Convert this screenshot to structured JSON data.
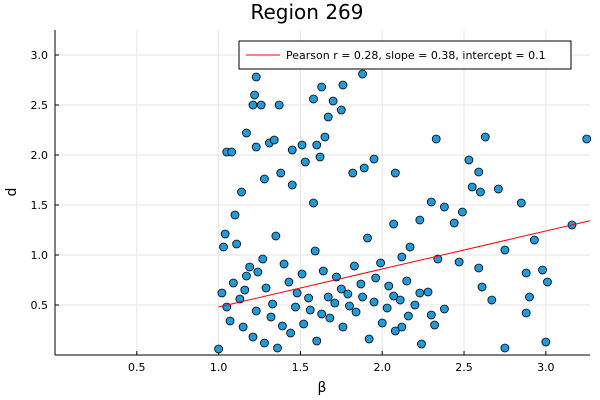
{
  "chart_data": {
    "type": "scatter",
    "title": "Region 269",
    "xlabel": "β",
    "ylabel": "d",
    "xlim": [
      0.0,
      3.27
    ],
    "ylim": [
      0.0,
      3.25
    ],
    "xticks": [
      0.5,
      1.0,
      1.5,
      2.0,
      2.5,
      3.0
    ],
    "xtick_labels": [
      "0.5",
      "1.0",
      "1.5",
      "2.0",
      "2.5",
      "3.0"
    ],
    "yticks": [
      0.5,
      1.0,
      1.5,
      2.0,
      2.5,
      3.0
    ],
    "ytick_labels": [
      "0.5",
      "1.0",
      "1.5",
      "2.0",
      "2.5",
      "3.0"
    ],
    "grid": true,
    "legend_position": "top-right",
    "marker_color": "#1f9bdc",
    "fit_color": "#ff0000",
    "fit": {
      "label": "Pearson r = 0.28, slope = 0.38, intercept = 0.1",
      "slope": 0.38,
      "intercept": 0.1,
      "x_range": [
        1.0,
        3.27
      ]
    },
    "series": [
      {
        "marker": "circle",
        "points": [
          [
            1.23,
            2.78
          ],
          [
            1.76,
            2.7
          ],
          [
            1.88,
            2.81
          ],
          [
            1.22,
            2.6
          ],
          [
            1.63,
            2.68
          ],
          [
            1.21,
            2.5
          ],
          [
            1.26,
            2.5
          ],
          [
            1.37,
            2.5
          ],
          [
            1.7,
            2.54
          ],
          [
            1.58,
            2.56
          ],
          [
            1.75,
            2.45
          ],
          [
            1.67,
            2.38
          ],
          [
            1.17,
            2.22
          ],
          [
            1.31,
            2.12
          ],
          [
            1.34,
            2.15
          ],
          [
            1.51,
            2.1
          ],
          [
            1.6,
            2.1
          ],
          [
            1.23,
            2.08
          ],
          [
            1.05,
            2.03
          ],
          [
            1.08,
            2.03
          ],
          [
            1.65,
            2.18
          ],
          [
            2.33,
            2.16
          ],
          [
            2.63,
            2.18
          ],
          [
            3.25,
            2.16
          ],
          [
            1.45,
            2.05
          ],
          [
            1.53,
            1.93
          ],
          [
            1.62,
            1.98
          ],
          [
            1.95,
            1.96
          ],
          [
            2.53,
            1.95
          ],
          [
            1.82,
            1.82
          ],
          [
            1.89,
            1.87
          ],
          [
            2.08,
            1.82
          ],
          [
            2.59,
            1.83
          ],
          [
            2.55,
            1.68
          ],
          [
            2.6,
            1.63
          ],
          [
            2.71,
            1.66
          ],
          [
            2.3,
            1.53
          ],
          [
            2.38,
            1.48
          ],
          [
            2.49,
            1.43
          ],
          [
            2.85,
            1.52
          ],
          [
            2.44,
            1.32
          ],
          [
            2.23,
            1.35
          ],
          [
            2.07,
            1.31
          ],
          [
            3.16,
            1.3
          ],
          [
            2.93,
            1.15
          ],
          [
            2.75,
            1.05
          ],
          [
            2.17,
            1.08
          ],
          [
            2.12,
            0.98
          ],
          [
            2.34,
            0.96
          ],
          [
            2.47,
            0.93
          ],
          [
            2.59,
            0.87
          ],
          [
            2.88,
            0.82
          ],
          [
            2.98,
            0.85
          ],
          [
            3.01,
            0.73
          ],
          [
            2.61,
            0.68
          ],
          [
            2.67,
            0.55
          ],
          [
            2.9,
            0.58
          ],
          [
            2.88,
            0.42
          ],
          [
            2.3,
            0.4
          ],
          [
            2.38,
            0.46
          ],
          [
            2.32,
            0.3
          ],
          [
            2.75,
            0.07
          ],
          [
            3.0,
            0.13
          ],
          [
            1.45,
            1.7
          ],
          [
            1.58,
            1.52
          ],
          [
            1.38,
            1.82
          ],
          [
            1.28,
            1.76
          ],
          [
            1.14,
            1.63
          ],
          [
            1.1,
            1.4
          ],
          [
            1.04,
            1.21
          ],
          [
            1.03,
            1.08
          ],
          [
            1.02,
            0.62
          ],
          [
            1.05,
            0.48
          ],
          [
            1.0,
            0.06
          ],
          [
            1.15,
            0.28
          ],
          [
            1.21,
            0.18
          ],
          [
            1.28,
            0.12
          ],
          [
            1.36,
            0.07
          ],
          [
            1.44,
            0.22
          ],
          [
            1.52,
            0.31
          ],
          [
            1.6,
            0.14
          ],
          [
            1.68,
            0.37
          ],
          [
            1.76,
            0.28
          ],
          [
            1.84,
            0.43
          ],
          [
            1.92,
            0.16
          ],
          [
            2.0,
            0.32
          ],
          [
            2.08,
            0.24
          ],
          [
            2.16,
            0.39
          ],
          [
            2.24,
            0.11
          ],
          [
            1.11,
            1.11
          ],
          [
            1.19,
            0.88
          ],
          [
            1.27,
            0.96
          ],
          [
            1.35,
            1.19
          ],
          [
            1.43,
            0.73
          ],
          [
            1.51,
            0.81
          ],
          [
            1.59,
            1.04
          ],
          [
            1.67,
            0.58
          ],
          [
            1.75,
            0.66
          ],
          [
            1.83,
            0.89
          ],
          [
            1.91,
            1.17
          ],
          [
            1.99,
            0.92
          ],
          [
            2.07,
            0.59
          ],
          [
            2.15,
            0.74
          ],
          [
            2.23,
            0.62
          ],
          [
            1.07,
            0.34
          ],
          [
            1.13,
            0.56
          ],
          [
            1.17,
            0.79
          ],
          [
            1.23,
            0.44
          ],
          [
            1.29,
            0.67
          ],
          [
            1.33,
            0.51
          ],
          [
            1.39,
            0.29
          ],
          [
            1.47,
            0.48
          ],
          [
            1.55,
            0.57
          ],
          [
            1.63,
            0.41
          ],
          [
            1.71,
            0.52
          ],
          [
            1.79,
            0.61
          ],
          [
            1.87,
            0.71
          ],
          [
            1.95,
            0.53
          ],
          [
            2.03,
            0.47
          ],
          [
            2.11,
            0.55
          ],
          [
            1.09,
            0.72
          ],
          [
            1.16,
            0.65
          ],
          [
            1.24,
            0.83
          ],
          [
            1.32,
            0.38
          ],
          [
            1.4,
            0.91
          ],
          [
            1.48,
            0.62
          ],
          [
            1.56,
            0.45
          ],
          [
            1.64,
            0.84
          ],
          [
            1.72,
            0.78
          ],
          [
            1.8,
            0.49
          ],
          [
            1.88,
            0.58
          ],
          [
            1.96,
            0.77
          ],
          [
            2.04,
            0.69
          ],
          [
            2.12,
            0.28
          ],
          [
            2.2,
            0.5
          ],
          [
            2.28,
            0.63
          ]
        ]
      }
    ]
  }
}
